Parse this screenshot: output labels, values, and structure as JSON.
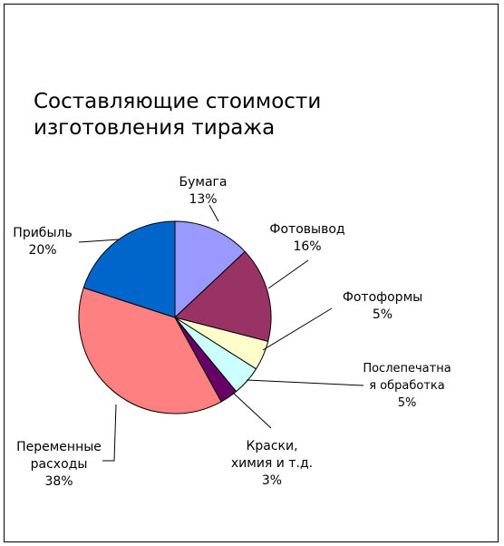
{
  "chart_data": {
    "type": "pie",
    "title_lines": [
      "Составляющие стоимости",
      "изготовления тиража"
    ],
    "slices": [
      {
        "name": "Бумага",
        "value": 13,
        "label_lines": [
          "Бумага",
          "13%"
        ],
        "color": "#9999ff"
      },
      {
        "name": "Фотовывод",
        "value": 16,
        "label_lines": [
          "Фотовывод",
          "16%"
        ],
        "color": "#993366"
      },
      {
        "name": "Фотоформы",
        "value": 5,
        "label_lines": [
          "Фотоформы",
          "5%"
        ],
        "color": "#ffffcc"
      },
      {
        "name": "Послепечатная обработка",
        "value": 5,
        "label_lines": [
          "Послепечатна",
          "я обработка",
          "5%"
        ],
        "color": "#ccffff"
      },
      {
        "name": "Краски, химия и т.д.",
        "value": 3,
        "label_lines": [
          "Краски,",
          "химия и т.д.",
          "3%"
        ],
        "color": "#660066"
      },
      {
        "name": "Переменные расходы",
        "value": 38,
        "label_lines": [
          "Переменные",
          "расходы",
          "38%"
        ],
        "color": "#ff8080"
      },
      {
        "name": "Прибыль",
        "value": 20,
        "label_lines": [
          "Прибыль",
          "20%"
        ],
        "color": "#0066cc"
      }
    ],
    "start_angle_deg": 0,
    "direction": "clockwise",
    "legend": "none"
  }
}
